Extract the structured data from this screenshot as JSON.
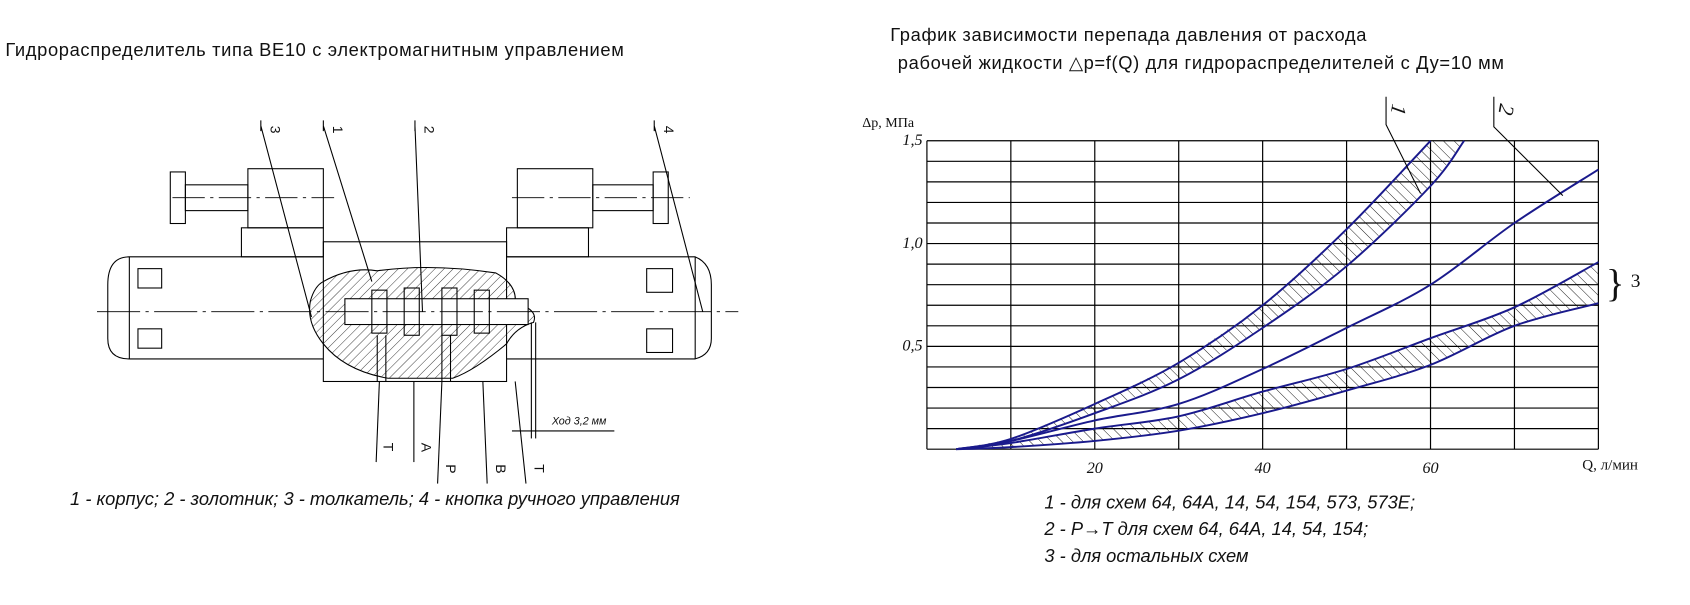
{
  "left": {
    "title": "Гидрораспределитель типа ВЕ10 с электромагнитным управлением",
    "callouts": [
      "3",
      "1",
      "2",
      "4"
    ],
    "ports": [
      "T",
      "A",
      "P",
      "B",
      "T"
    ],
    "stroke_label": "Ход 3,2 мм",
    "caption": "1 -  корпус; 2 -  золотник; 3 -  толкатель; 4 -  кнопка ручного управления"
  },
  "right": {
    "title_line1": "График зависимости перепада давления от расхода",
    "title_line2": "рабочей жидкости △p=f(Q) для гидрораспределителей с Ду=10 мм",
    "legend": [
      "1 -  для схем 64, 64А, 14, 54, 154, 573, 573Е;",
      "2 -  Р→Т для схем 64, 64А, 14, 54, 154;",
      "3 -  для остальных схем"
    ]
  },
  "chart_data": {
    "type": "line",
    "xlabel": "Q, л/мин",
    "ylabel": "Δp, МПа",
    "xlim": [
      0,
      80
    ],
    "ylim": [
      0,
      1.5
    ],
    "x_ticks": [
      {
        "v": 20,
        "label": "20"
      },
      {
        "v": 40,
        "label": "40"
      },
      {
        "v": 60,
        "label": "60"
      }
    ],
    "y_ticks": [
      {
        "v": 0.5,
        "label": "0,5"
      },
      {
        "v": 1.0,
        "label": "1,0"
      },
      {
        "v": 1.5,
        "label": "1,5"
      }
    ],
    "grid": {
      "x_step": 10,
      "y_step": 0.1
    },
    "curve_color": "#1a1a8c",
    "series": [
      {
        "name": "1",
        "kind": "band",
        "upper": [
          [
            3.5,
            0
          ],
          [
            10,
            0.05
          ],
          [
            20,
            0.22
          ],
          [
            30,
            0.42
          ],
          [
            40,
            0.7
          ],
          [
            50,
            1.07
          ],
          [
            60,
            1.5
          ]
        ],
        "lower": [
          [
            3.5,
            0
          ],
          [
            10,
            0.04
          ],
          [
            20,
            0.175
          ],
          [
            30,
            0.34
          ],
          [
            40,
            0.59
          ],
          [
            50,
            0.89
          ],
          [
            60,
            1.28
          ],
          [
            64,
            1.5
          ]
        ]
      },
      {
        "name": "2",
        "kind": "line",
        "values": [
          [
            3.5,
            0
          ],
          [
            10,
            0.04
          ],
          [
            20,
            0.14
          ],
          [
            30,
            0.22
          ],
          [
            40,
            0.39
          ],
          [
            50,
            0.59
          ],
          [
            60,
            0.8
          ],
          [
            70,
            1.1
          ],
          [
            80,
            1.36
          ]
        ]
      },
      {
        "name": "3",
        "kind": "band",
        "upper": [
          [
            3.5,
            0
          ],
          [
            10,
            0.03
          ],
          [
            20,
            0.1
          ],
          [
            30,
            0.16
          ],
          [
            40,
            0.28
          ],
          [
            50,
            0.39
          ],
          [
            60,
            0.54
          ],
          [
            70,
            0.69
          ],
          [
            80,
            0.91
          ]
        ],
        "lower": [
          [
            3.5,
            0
          ],
          [
            10,
            0.01
          ],
          [
            20,
            0.04
          ],
          [
            30,
            0.09
          ],
          [
            40,
            0.175
          ],
          [
            50,
            0.285
          ],
          [
            60,
            0.41
          ],
          [
            70,
            0.6
          ],
          [
            80,
            0.71
          ]
        ]
      }
    ]
  }
}
